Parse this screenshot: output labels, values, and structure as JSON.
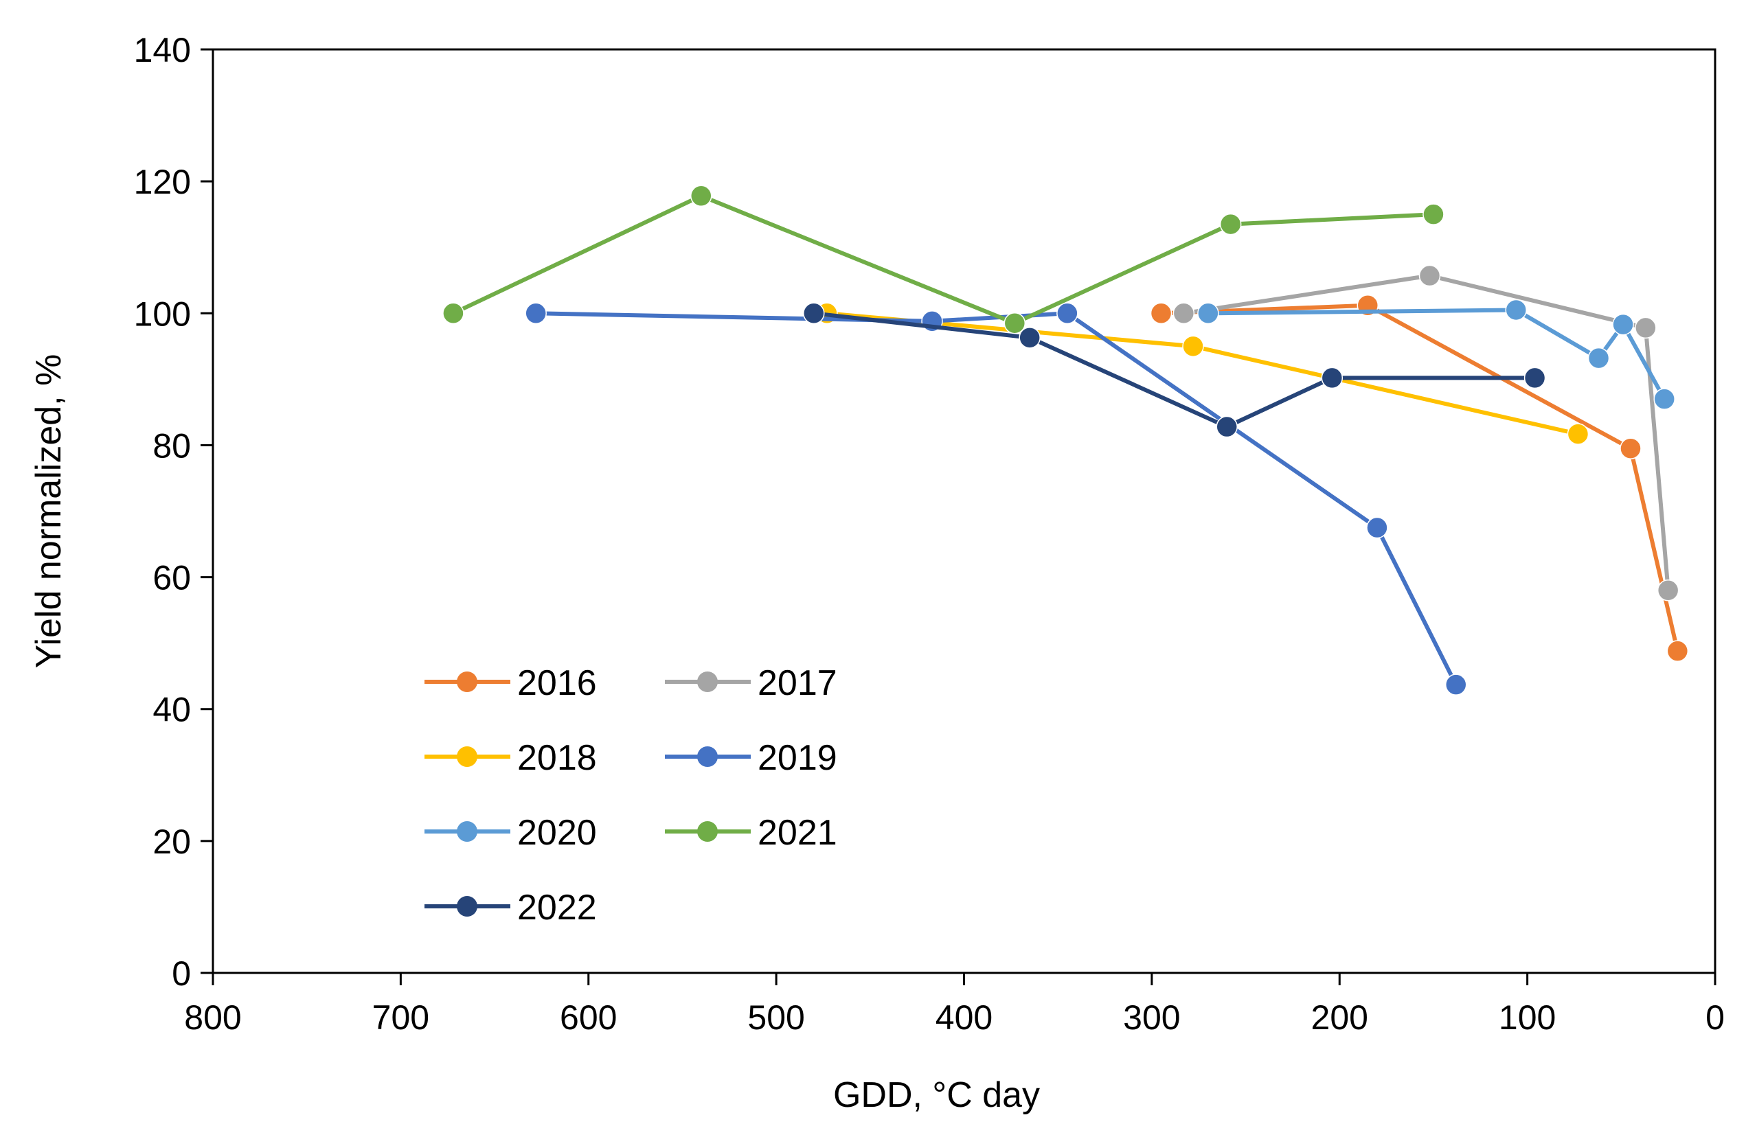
{
  "chart_data": {
    "type": "line",
    "title": "",
    "xlabel": "GDD,  °C day",
    "ylabel": "Yield normalized,  %",
    "xlim": [
      800,
      0
    ],
    "ylim": [
      0,
      140
    ],
    "x_reversed": true,
    "x_ticks": [
      "800",
      "700",
      "600",
      "500",
      "400",
      "300",
      "200",
      "100",
      "0"
    ],
    "y_ticks": [
      "0",
      "20",
      "40",
      "60",
      "80",
      "100",
      "120",
      "140"
    ],
    "grid": false,
    "legend_position": "lower-left",
    "series": [
      {
        "name": "2016",
        "color": "#ED7D31",
        "points": [
          [
            295,
            100
          ],
          [
            185,
            101.2
          ],
          [
            45,
            79.5
          ],
          [
            20,
            48.8
          ]
        ]
      },
      {
        "name": "2017",
        "color": "#A5A5A5",
        "points": [
          [
            283,
            100
          ],
          [
            152,
            105.7
          ],
          [
            37,
            97.8
          ],
          [
            25,
            58
          ]
        ]
      },
      {
        "name": "2018",
        "color": "#FFC000",
        "points": [
          [
            473,
            100
          ],
          [
            278,
            95
          ],
          [
            73,
            81.7
          ]
        ]
      },
      {
        "name": "2019",
        "color": "#4472C4",
        "points": [
          [
            628,
            100
          ],
          [
            417,
            98.8
          ],
          [
            345,
            100
          ],
          [
            180,
            67.5
          ],
          [
            138,
            43.7
          ]
        ]
      },
      {
        "name": "2020",
        "color": "#5B9BD5",
        "points": [
          [
            270,
            100
          ],
          [
            106,
            100.5
          ],
          [
            62,
            93.2
          ],
          [
            49,
            98.3
          ],
          [
            27,
            87
          ]
        ]
      },
      {
        "name": "2021",
        "color": "#70AD47",
        "points": [
          [
            672,
            100
          ],
          [
            540,
            117.8
          ],
          [
            373,
            98.5
          ],
          [
            258,
            113.5
          ],
          [
            150,
            115
          ]
        ]
      },
      {
        "name": "2022",
        "color": "#264478",
        "points": [
          [
            480,
            100
          ],
          [
            365,
            96.3
          ],
          [
            260,
            82.8
          ],
          [
            204,
            90.2
          ],
          [
            96,
            90.2
          ]
        ]
      }
    ]
  }
}
